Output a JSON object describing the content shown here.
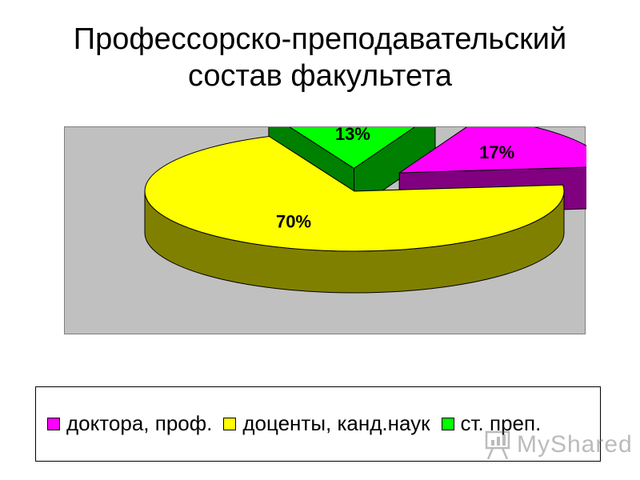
{
  "chart_data": {
    "type": "pie",
    "title_lines": [
      "Профессорско-преподавательский",
      "состав факультета"
    ],
    "slices": [
      {
        "label": "доктора, проф.",
        "value": 17,
        "display": "17%",
        "color": "#ff00ff",
        "side_color": "#800080"
      },
      {
        "label": "доценты, канд.наук",
        "value": 70,
        "display": "70%",
        "color": "#ffff00",
        "side_color": "#808000"
      },
      {
        "label": "ст. преп.",
        "value": 13,
        "display": "13%",
        "color": "#00ff00",
        "side_color": "#008000"
      }
    ],
    "legend_position": "bottom",
    "style": "3d-exploded",
    "plot_background": "#c0c0c0"
  },
  "watermark": {
    "text": "MyShared",
    "icon": "presentation-board-icon"
  }
}
